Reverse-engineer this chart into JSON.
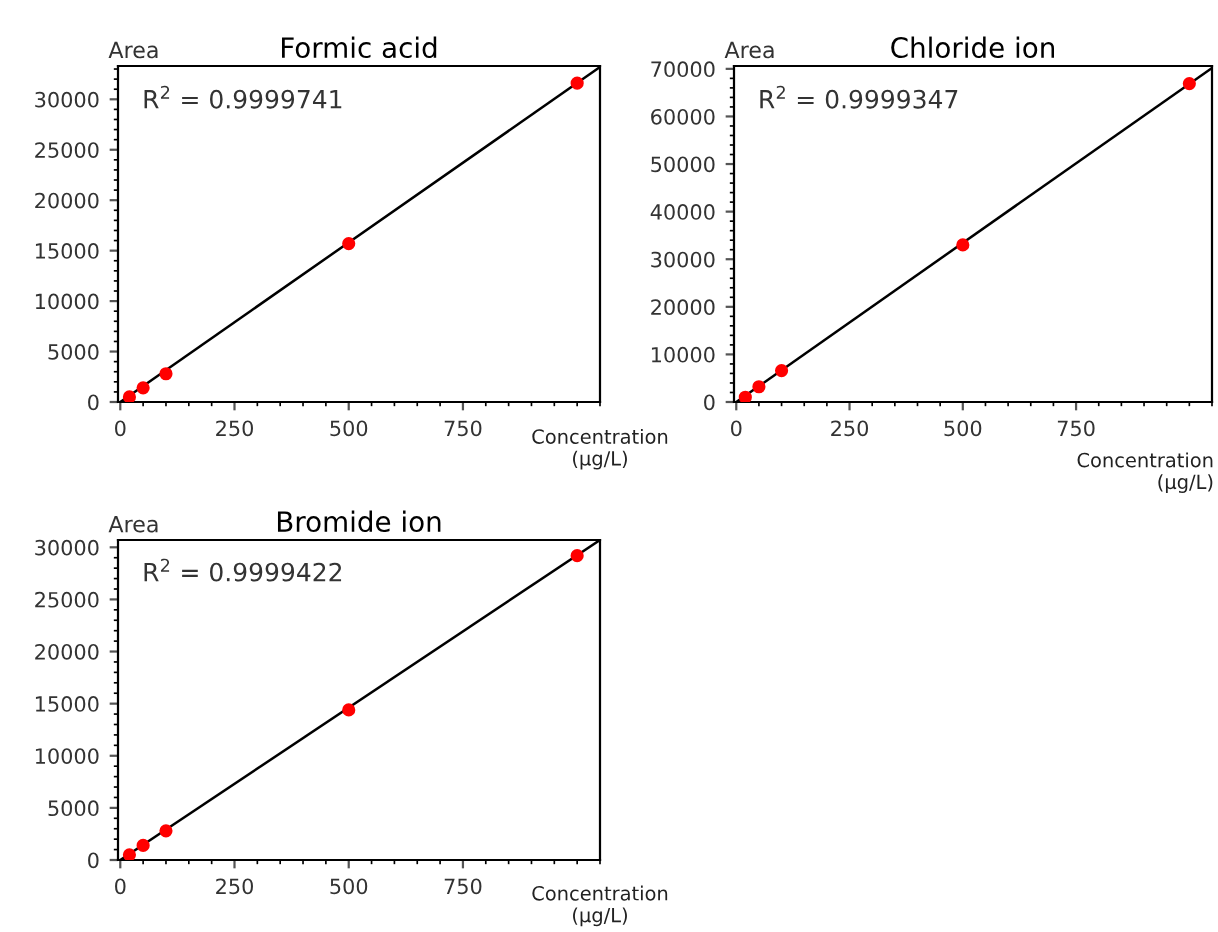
{
  "chart_data": [
    {
      "type": "scatter",
      "title": "Formic acid",
      "xlabel": "Concentration\n(µg/L)",
      "ylabel": "Area",
      "annotations": [
        "R$^{2}$ = 0.9999741"
      ],
      "xlim": [
        -5,
        1050
      ],
      "ylim": [
        0,
        33300
      ],
      "xticks": [
        0,
        250,
        500,
        750
      ],
      "yticks": [
        0,
        5000,
        10000,
        15000,
        20000,
        25000,
        30000
      ],
      "marker": "circle",
      "series": [
        {
          "type": "line",
          "color": "#000000",
          "x": [
            0,
            1050
          ],
          "values": [
            0,
            33200
          ],
          "marker": "none"
        },
        {
          "color": "#ff0000",
          "x": [
            20,
            50,
            100,
            500,
            1000
          ],
          "values": [
            500,
            1400,
            2800,
            15700,
            31600
          ]
        }
      ]
    },
    {
      "type": "scatter",
      "title": "Chloride ion",
      "xlabel": "Concentration\n(µg/L)",
      "ylabel": "Area",
      "annotations": [
        "R$^{2}$ = 0.9999347"
      ],
      "xlim": [
        -5,
        1050
      ],
      "ylim": [
        0,
        70600
      ],
      "xticks": [
        0,
        250,
        500,
        750
      ],
      "yticks": [
        0,
        10000,
        20000,
        30000,
        40000,
        50000,
        60000,
        70000
      ],
      "marker": "circle",
      "series": [
        {
          "type": "line",
          "color": "#000000",
          "x": [
            0,
            1050
          ],
          "values": [
            0,
            70200
          ],
          "marker": "none"
        },
        {
          "color": "#ff0000",
          "x": [
            20,
            50,
            100,
            500,
            1000
          ],
          "values": [
            1000,
            3200,
            6600,
            33000,
            66900
          ]
        }
      ]
    },
    {
      "type": "scatter",
      "title": "Bromide ion",
      "xlabel": "Concentration\n(µg/L)",
      "ylabel": "Area",
      "annotations": [
        "R$^{2}$ = 0.9999422"
      ],
      "xlim": [
        -5,
        1050
      ],
      "ylim": [
        0,
        30700
      ],
      "xticks": [
        0,
        250,
        500,
        750
      ],
      "yticks": [
        0,
        5000,
        10000,
        15000,
        20000,
        25000,
        30000
      ],
      "marker": "circle",
      "series": [
        {
          "type": "line",
          "color": "#000000",
          "x": [
            0,
            1050
          ],
          "values": [
            0,
            30700
          ],
          "marker": "none"
        },
        {
          "color": "#ff0000",
          "x": [
            20,
            50,
            100,
            500,
            1000
          ],
          "values": [
            500,
            1400,
            2800,
            14400,
            29200
          ]
        }
      ]
    }
  ]
}
